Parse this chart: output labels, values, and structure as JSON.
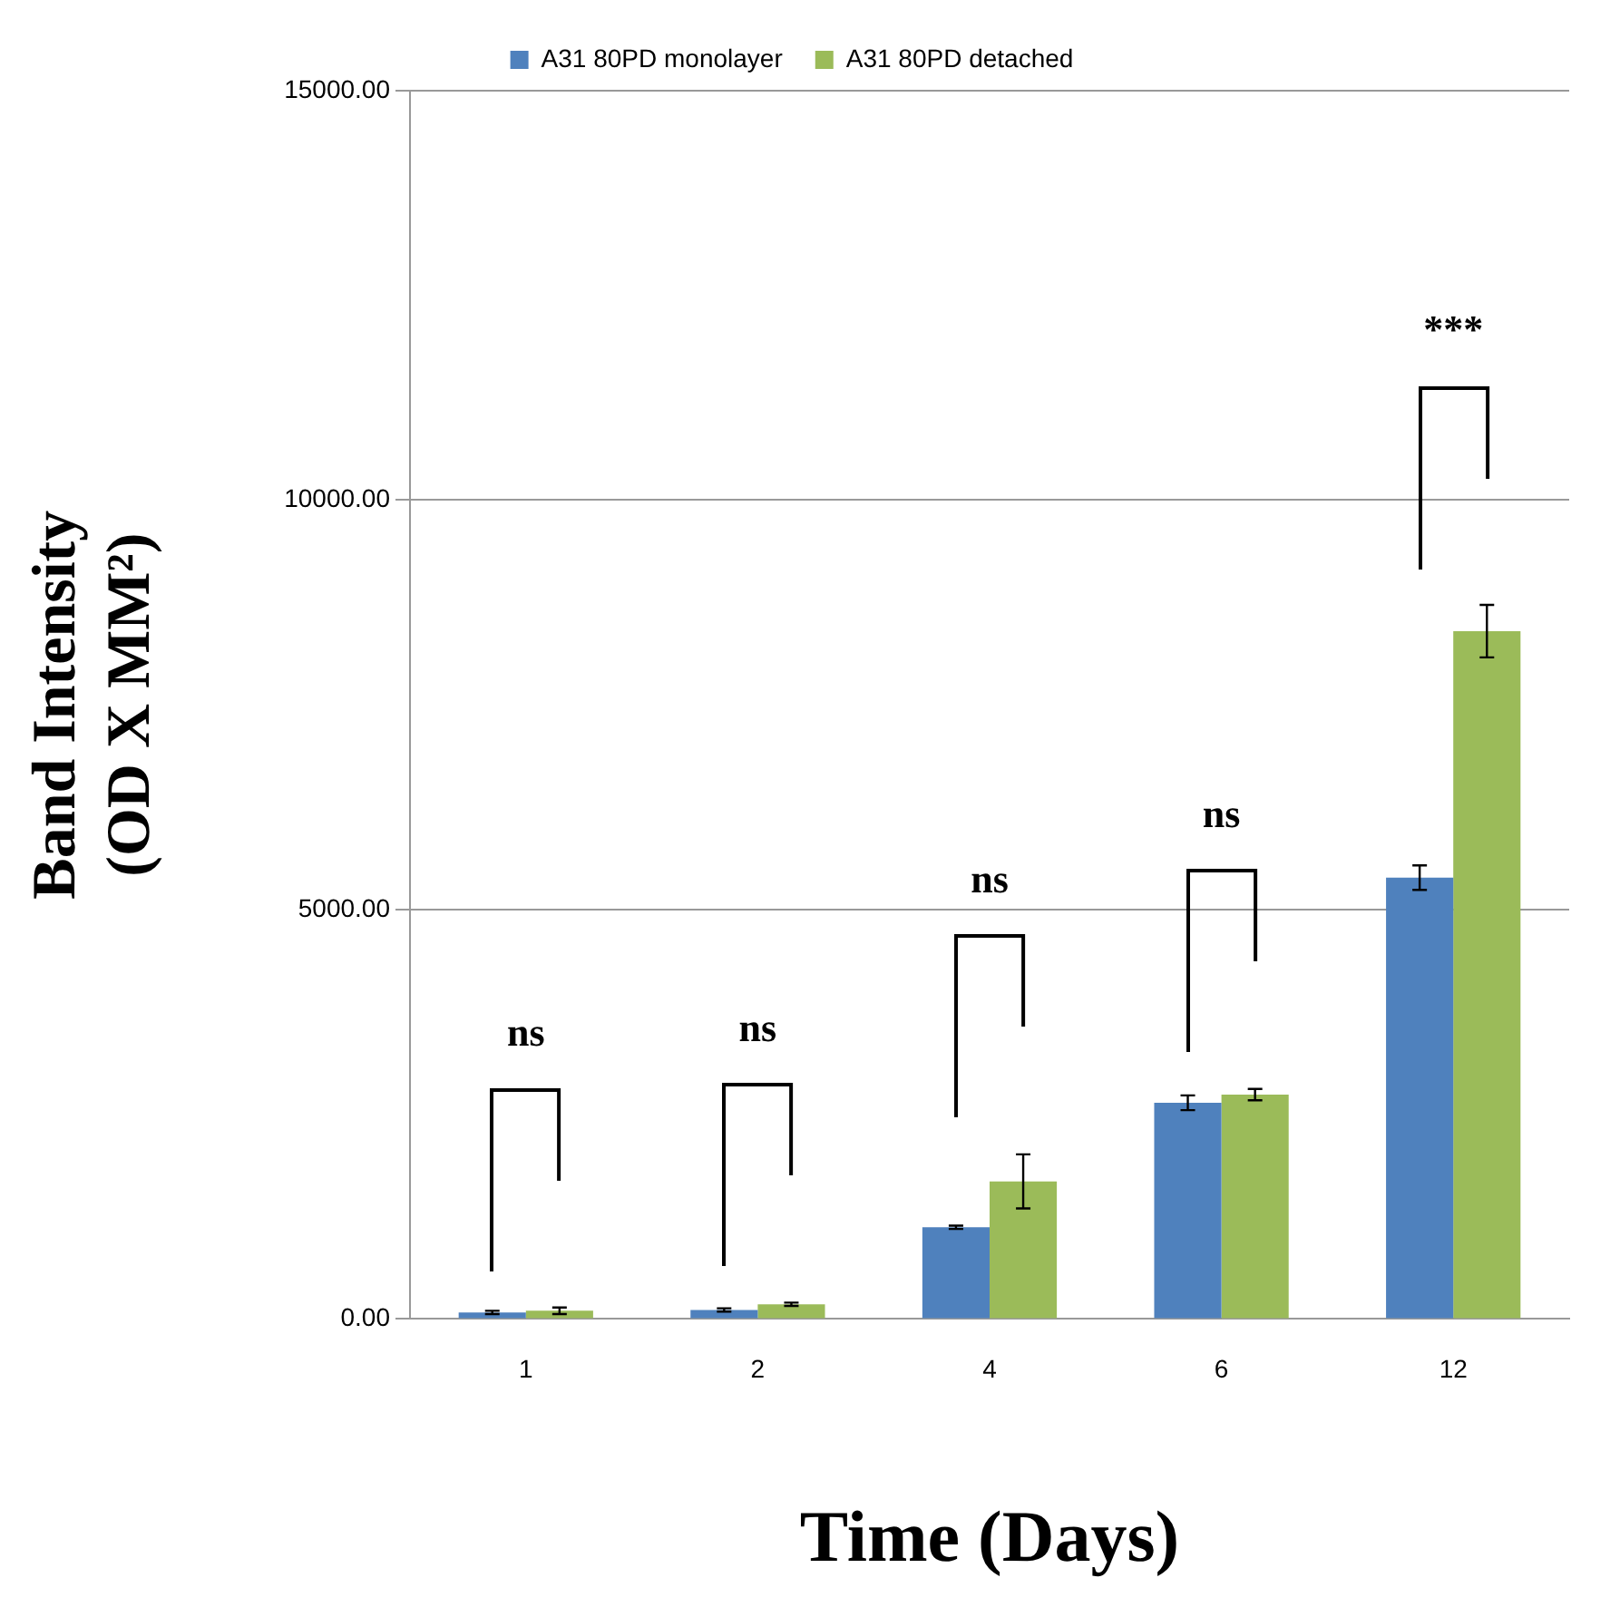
{
  "chart_data": {
    "type": "bar",
    "xlabel": "Time (Days)",
    "ylabel": "Band Intensity\n(OD X MM²)",
    "categories": [
      "1",
      "2",
      "4",
      "6",
      "12"
    ],
    "series": [
      {
        "name": "A31 80PD monolayer",
        "color": "#4f81bd",
        "values": [
          80,
          110,
          1120,
          2640,
          5390
        ],
        "errors": [
          20,
          20,
          20,
          90,
          150
        ]
      },
      {
        "name": "A31 80PD detached",
        "color": "#9bbb59",
        "values": [
          100,
          180,
          1680,
          2740,
          8400
        ],
        "errors": [
          40,
          20,
          330,
          70,
          320
        ]
      }
    ],
    "ylim": [
      0,
      15000
    ],
    "yticks": [
      {
        "value": 0,
        "label": "0.00"
      },
      {
        "value": 5000,
        "label": "5000.00"
      },
      {
        "value": 10000,
        "label": "10000.00"
      },
      {
        "value": 15000,
        "label": "15000.00"
      }
    ],
    "grid": "y",
    "legend": "top",
    "annotations": [
      "ns",
      "ns",
      "ns",
      "ns",
      "***"
    ]
  }
}
